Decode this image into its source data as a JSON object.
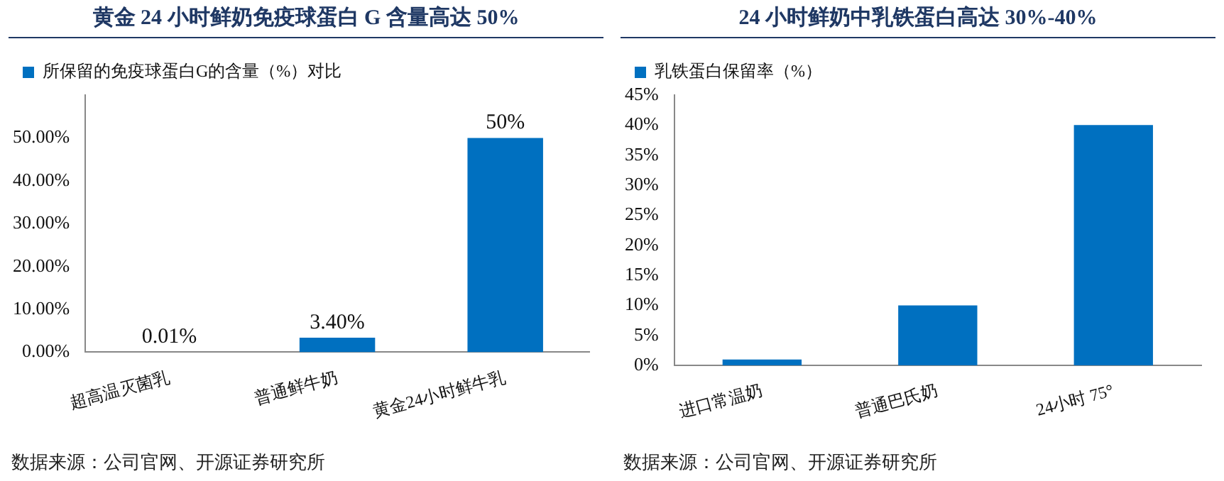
{
  "chart_data": [
    {
      "type": "bar",
      "title": "黄金 24 小时鲜奶免疫球蛋白 G 含量高达 50%",
      "categories": [
        "超高温灭菌乳",
        "普通鲜牛奶",
        "黄金24小时鲜牛乳"
      ],
      "series": [
        {
          "name": "所保留的免疫球蛋白G的含量（%）对比",
          "color": "#0070c0",
          "values": [
            0.01,
            3.4,
            50
          ],
          "value_labels": [
            "0.01%",
            "3.40%",
            "50%"
          ]
        }
      ],
      "ylim": [
        0,
        60
      ],
      "yticks": [
        {
          "value": 0,
          "label": "0.00%"
        },
        {
          "value": 10,
          "label": "10.00%"
        },
        {
          "value": 20,
          "label": "20.00%"
        },
        {
          "value": 30,
          "label": "30.00%"
        },
        {
          "value": 40,
          "label": "40.00%"
        },
        {
          "value": 50,
          "label": "50.00%"
        }
      ],
      "grid": false,
      "legend": "top",
      "annotations": [
        "数据来源：公司官网、开源证券研究所"
      ]
    },
    {
      "type": "bar",
      "title": "24 小时鲜奶中乳铁蛋白高达 30%-40%",
      "categories": [
        "进口常温奶",
        "普通巴氏奶",
        "24小时 75°"
      ],
      "series": [
        {
          "name": "乳铁蛋白保留率（%）",
          "color": "#0070c0",
          "values": [
            1,
            10,
            40
          ]
        }
      ],
      "ylim": [
        0,
        45
      ],
      "yticks": [
        {
          "value": 0,
          "label": "0%"
        },
        {
          "value": 5,
          "label": "5%"
        },
        {
          "value": 10,
          "label": "10%"
        },
        {
          "value": 15,
          "label": "15%"
        },
        {
          "value": 20,
          "label": "20%"
        },
        {
          "value": 25,
          "label": "25%"
        },
        {
          "value": 30,
          "label": "30%"
        },
        {
          "value": 35,
          "label": "35%"
        },
        {
          "value": 40,
          "label": "40%"
        },
        {
          "value": 45,
          "label": "45%"
        }
      ],
      "grid": false,
      "legend": "top",
      "annotations": [
        "数据来源：公司官网、开源证券研究所"
      ]
    }
  ]
}
